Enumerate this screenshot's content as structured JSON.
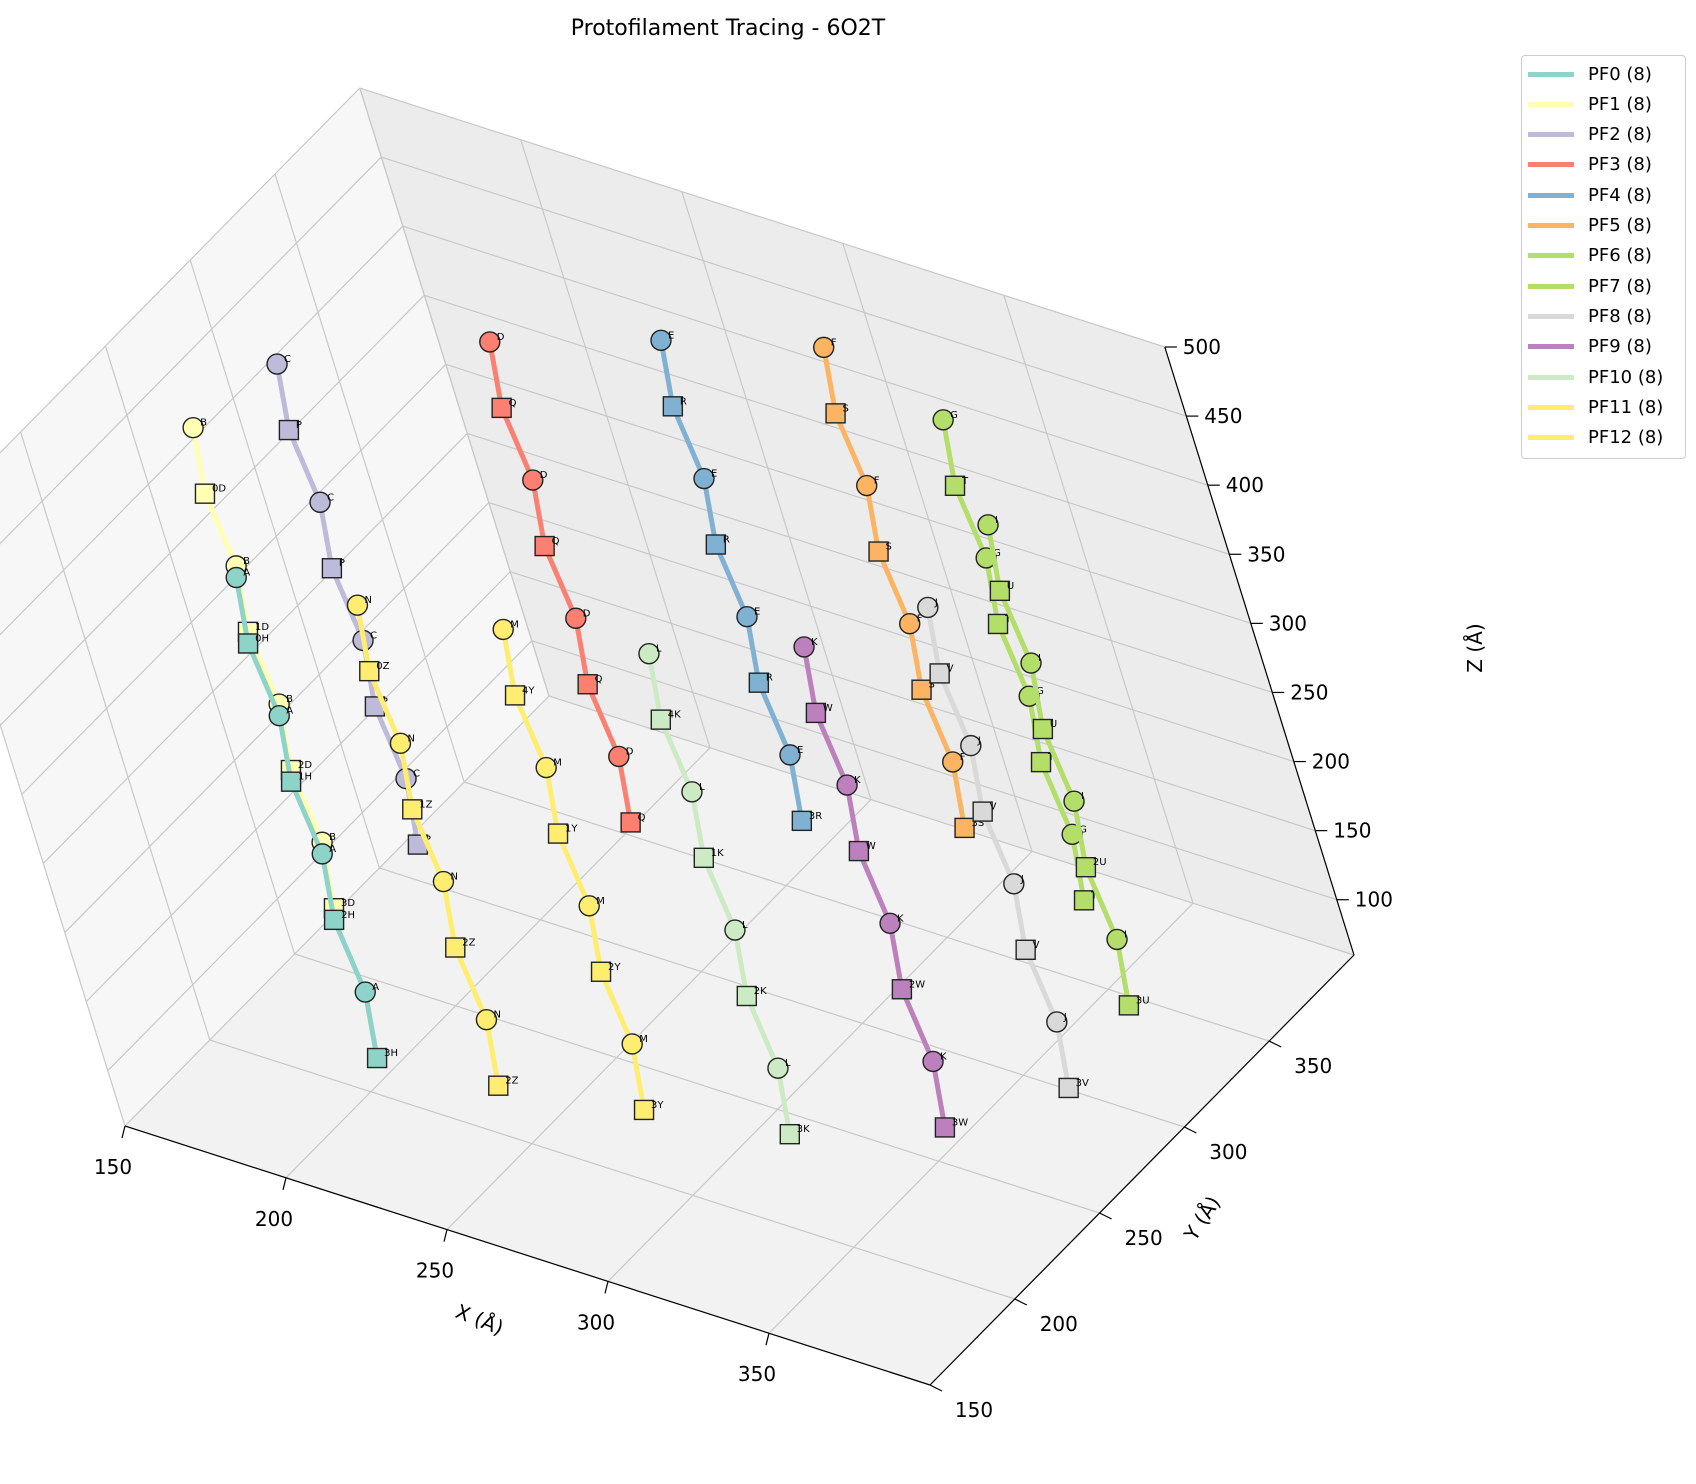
{
  "chart_data": {
    "type": "scatter3d",
    "title": "Protofilament Tracing - 6O2T",
    "xlabel": "X (Å)",
    "ylabel": "Y (Å)",
    "zlabel": "Z (Å)",
    "xlim": [
      150,
      400
    ],
    "ylim": [
      150,
      400
    ],
    "zlim": [
      60,
      500
    ],
    "xticks": [
      "150",
      "200",
      "250",
      "300",
      "350"
    ],
    "yticks": [
      "150",
      "200",
      "250",
      "300",
      "350"
    ],
    "zticks": [
      "100",
      "150",
      "200",
      "250",
      "300",
      "350",
      "400",
      "450",
      "500"
    ],
    "grid": true,
    "legend_position": "outside-top-right",
    "marker_shapes": [
      "circle",
      "square"
    ],
    "series": [
      {
        "name": "PF0 (8)",
        "color": "#8dd3c7",
        "x": 215,
        "y": 190,
        "z": [
          107,
          157,
          207,
          257,
          307,
          357,
          407,
          457
        ],
        "labels": [
          "3H",
          "A",
          "2H",
          "A",
          "1H",
          "A",
          "0H",
          "A"
        ]
      },
      {
        "name": "PF1 (8)",
        "color": "#ffffb3",
        "x": 170,
        "y": 250,
        "z": [
          107,
          157,
          207,
          257,
          307,
          357,
          407,
          457
        ],
        "labels": [
          "3D",
          "B",
          "2D",
          "B",
          "1D",
          "B",
          "0D",
          "B"
        ]
      },
      {
        "name": "PF2 (8)",
        "color": "#bebada",
        "x": 175,
        "y": 290,
        "z": [
          107,
          157,
          207,
          257,
          307,
          357,
          407,
          457
        ],
        "labels": [
          "P",
          "C",
          "P",
          "C",
          "P",
          "C",
          "P",
          "C"
        ]
      },
      {
        "name": "PF3 (8)",
        "color": "#fb8072",
        "x": 220,
        "y": 330,
        "z": [
          107,
          157,
          207,
          257,
          307,
          357,
          407,
          457
        ],
        "labels": [
          "Q",
          "D",
          "Q",
          "D",
          "Q",
          "D",
          "Q",
          "D"
        ]
      },
      {
        "name": "PF4 (8)",
        "color": "#80b1d3",
        "x": 260,
        "y": 355,
        "z": [
          107,
          157,
          207,
          257,
          307,
          357,
          407,
          457
        ],
        "labels": [
          "3R",
          "E",
          "R",
          "E",
          "R",
          "E",
          "R",
          "E"
        ]
      },
      {
        "name": "PF5 (8)",
        "color": "#fdb462",
        "x": 300,
        "y": 375,
        "z": [
          107,
          157,
          207,
          257,
          307,
          357,
          407,
          457
        ],
        "labels": [
          "3S",
          "F",
          "S",
          "F",
          "S",
          "F",
          "S",
          "F"
        ]
      },
      {
        "name": "PF6 (8)",
        "color": "#b3de69",
        "x": 345,
        "y": 360,
        "z": [
          107,
          157,
          207,
          257,
          307,
          357,
          407,
          457
        ],
        "labels": [
          "T",
          "G",
          "T",
          "G",
          "T",
          "G",
          "T",
          "G"
        ]
      },
      {
        "name": "PF7 (8)",
        "color": "#b3de69",
        "x": 380,
        "y": 320,
        "z": [
          107,
          157,
          207,
          257,
          307,
          357,
          407,
          457
        ],
        "labels": [
          "3U",
          "I",
          "2U",
          "I",
          "U",
          "I",
          "U",
          "I"
        ]
      },
      {
        "name": "PF8 (8)",
        "color": "#d9d9d9",
        "x": 385,
        "y": 275,
        "z": [
          107,
          157,
          207,
          257,
          307,
          357,
          407,
          457
        ],
        "labels": [
          "3V",
          "J",
          "V",
          "J",
          "V",
          "J",
          "V",
          "J"
        ]
      },
      {
        "name": "PF9 (8)",
        "color": "#bc80bd",
        "x": 365,
        "y": 240,
        "z": [
          107,
          157,
          207,
          257,
          307,
          357,
          407,
          457
        ],
        "labels": [
          "3W",
          "K",
          "2W",
          "K",
          "W",
          "K",
          "W",
          "K"
        ]
      },
      {
        "name": "PF10 (8)",
        "color": "#ccebc5",
        "x": 330,
        "y": 215,
        "z": [
          107,
          157,
          207,
          257,
          307,
          357,
          407,
          457
        ],
        "labels": [
          "3K",
          "L",
          "2K",
          "L",
          "1K",
          "L",
          "4K",
          "L"
        ]
      },
      {
        "name": "PF11 (8)",
        "color": "#ffed6f",
        "x": 290,
        "y": 205,
        "z": [
          107,
          157,
          207,
          257,
          307,
          357,
          407,
          457
        ],
        "labels": [
          "3Y",
          "M",
          "2Y",
          "M",
          "1Y",
          "M",
          "4Y",
          "M"
        ]
      },
      {
        "name": "PF12 (8)",
        "color": "#ffed6f",
        "x": 250,
        "y": 195,
        "z": [
          107,
          157,
          207,
          257,
          307,
          357,
          407,
          457
        ],
        "labels": [
          "2Z",
          "N",
          "2Z",
          "N",
          "1Z",
          "N",
          "0Z",
          "N"
        ]
      }
    ]
  }
}
